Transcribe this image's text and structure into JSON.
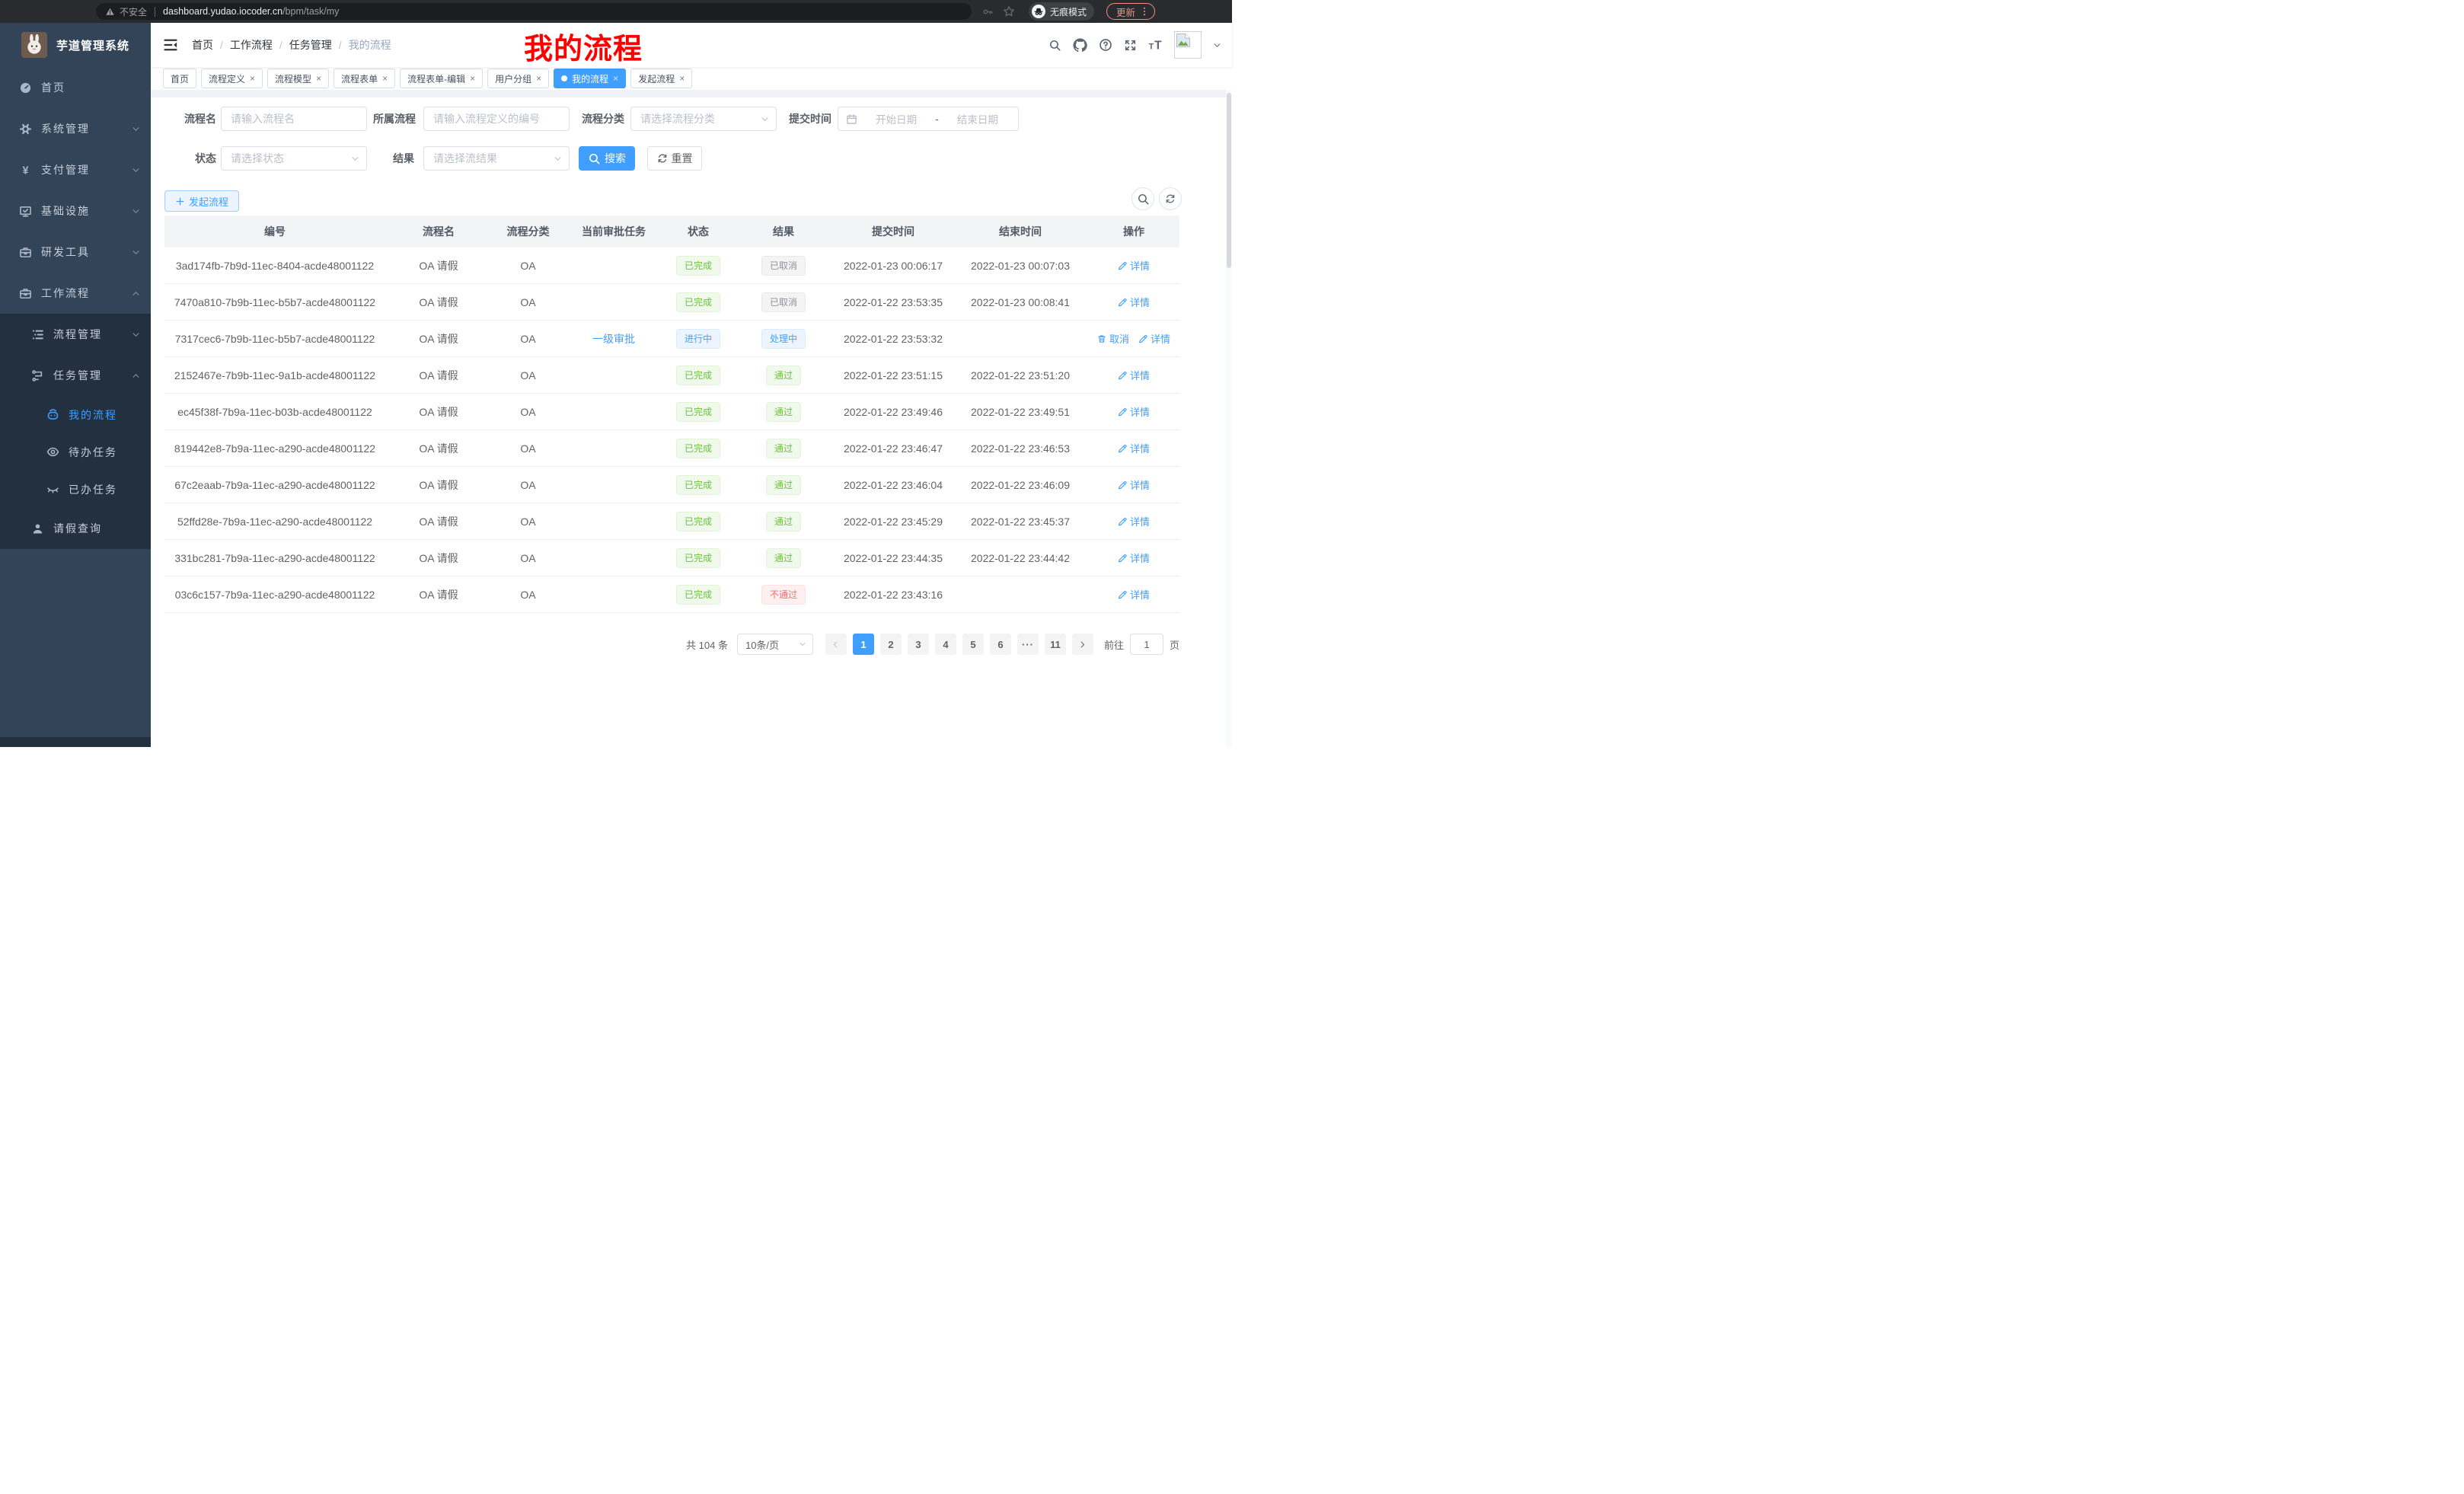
{
  "browser": {
    "security_label": "不安全",
    "url_host": "dashboard.yudao.iocoder.cn",
    "url_path": "/bpm/task/my",
    "incognito_label": "无痕模式",
    "update_label": "更新"
  },
  "sidebar": {
    "app_title": "芋道管理系统",
    "items": [
      {
        "label": "首页",
        "icon": "dashboard",
        "level": 1
      },
      {
        "label": "系统管理",
        "icon": "gear",
        "level": 1,
        "chevron": "down"
      },
      {
        "label": "支付管理",
        "icon": "yen",
        "level": 1,
        "chevron": "down"
      },
      {
        "label": "基础设施",
        "icon": "monitor",
        "level": 1,
        "chevron": "down"
      },
      {
        "label": "研发工具",
        "icon": "suitcase",
        "level": 1,
        "chevron": "down"
      },
      {
        "label": "工作流程",
        "icon": "suitcase",
        "level": 1,
        "chevron": "up"
      },
      {
        "label": "流程管理",
        "icon": "tree-list",
        "level": 2,
        "chevron": "down",
        "dark": true
      },
      {
        "label": "任务管理",
        "icon": "share-nodes",
        "level": 2,
        "chevron": "up",
        "dark": true
      },
      {
        "label": "我的流程",
        "icon": "robot",
        "level": 3,
        "dark": true,
        "active": true
      },
      {
        "label": "待办任务",
        "icon": "eye",
        "level": 3,
        "dark": true
      },
      {
        "label": "已办任务",
        "icon": "eye-closed",
        "level": 3,
        "dark": true
      },
      {
        "label": "请假查询",
        "icon": "user",
        "level": 2,
        "dark": true
      }
    ]
  },
  "header": {
    "breadcrumb": [
      "首页",
      "工作流程",
      "任务管理",
      "我的流程"
    ],
    "annotation": "我的流程"
  },
  "tabs": [
    {
      "label": "首页"
    },
    {
      "label": "流程定义",
      "closable": true
    },
    {
      "label": "流程模型",
      "closable": true
    },
    {
      "label": "流程表单",
      "closable": true
    },
    {
      "label": "流程表单-编辑",
      "closable": true
    },
    {
      "label": "用户分组",
      "closable": true
    },
    {
      "label": "我的流程",
      "closable": true,
      "active": true
    },
    {
      "label": "发起流程",
      "closable": true
    }
  ],
  "filters": {
    "process_name_label": "流程名",
    "process_name_placeholder": "请输入流程名",
    "parent_label": "所属流程",
    "parent_placeholder": "请输入流程定义的编号",
    "category_label": "流程分类",
    "category_placeholder": "请选择流程分类",
    "submit_time_label": "提交时间",
    "date_start_placeholder": "开始日期",
    "date_separator": "-",
    "date_end_placeholder": "结束日期",
    "status_label": "状态",
    "status_placeholder": "请选择状态",
    "result_label": "结果",
    "result_placeholder": "请选择流结果",
    "search_label": "搜索",
    "reset_label": "重置"
  },
  "toolbar": {
    "create_label": "发起流程"
  },
  "table": {
    "headers": [
      "编号",
      "流程名",
      "流程分类",
      "当前审批任务",
      "状态",
      "结果",
      "提交时间",
      "结束时间",
      "操作"
    ],
    "action_labels": {
      "detail": "详情",
      "cancel": "取消"
    },
    "rows": [
      {
        "id": "3ad174fb-7b9d-11ec-8404-acde48001122",
        "name": "OA 请假",
        "category": "OA",
        "task": "",
        "status": {
          "text": "已完成",
          "type": "success"
        },
        "result": {
          "text": "已取消",
          "type": "info"
        },
        "submit_time": "2022-01-23 00:06:17",
        "end_time": "2022-01-23 00:07:03",
        "actions": [
          "detail"
        ]
      },
      {
        "id": "7470a810-7b9b-11ec-b5b7-acde48001122",
        "name": "OA 请假",
        "category": "OA",
        "task": "",
        "status": {
          "text": "已完成",
          "type": "success"
        },
        "result": {
          "text": "已取消",
          "type": "info"
        },
        "submit_time": "2022-01-22 23:53:35",
        "end_time": "2022-01-23 00:08:41",
        "actions": [
          "detail"
        ]
      },
      {
        "id": "7317cec6-7b9b-11ec-b5b7-acde48001122",
        "name": "OA 请假",
        "category": "OA",
        "task": "一级审批",
        "status": {
          "text": "进行中",
          "type": "primary"
        },
        "result": {
          "text": "处理中",
          "type": "primary"
        },
        "submit_time": "2022-01-22 23:53:32",
        "end_time": "",
        "actions": [
          "cancel",
          "detail"
        ]
      },
      {
        "id": "2152467e-7b9b-11ec-9a1b-acde48001122",
        "name": "OA 请假",
        "category": "OA",
        "task": "",
        "status": {
          "text": "已完成",
          "type": "success"
        },
        "result": {
          "text": "通过",
          "type": "success"
        },
        "submit_time": "2022-01-22 23:51:15",
        "end_time": "2022-01-22 23:51:20",
        "actions": [
          "detail"
        ]
      },
      {
        "id": "ec45f38f-7b9a-11ec-b03b-acde48001122",
        "name": "OA 请假",
        "category": "OA",
        "task": "",
        "status": {
          "text": "已完成",
          "type": "success"
        },
        "result": {
          "text": "通过",
          "type": "success"
        },
        "submit_time": "2022-01-22 23:49:46",
        "end_time": "2022-01-22 23:49:51",
        "actions": [
          "detail"
        ]
      },
      {
        "id": "819442e8-7b9a-11ec-a290-acde48001122",
        "name": "OA 请假",
        "category": "OA",
        "task": "",
        "status": {
          "text": "已完成",
          "type": "success"
        },
        "result": {
          "text": "通过",
          "type": "success"
        },
        "submit_time": "2022-01-22 23:46:47",
        "end_time": "2022-01-22 23:46:53",
        "actions": [
          "detail"
        ]
      },
      {
        "id": "67c2eaab-7b9a-11ec-a290-acde48001122",
        "name": "OA 请假",
        "category": "OA",
        "task": "",
        "status": {
          "text": "已完成",
          "type": "success"
        },
        "result": {
          "text": "通过",
          "type": "success"
        },
        "submit_time": "2022-01-22 23:46:04",
        "end_time": "2022-01-22 23:46:09",
        "actions": [
          "detail"
        ]
      },
      {
        "id": "52ffd28e-7b9a-11ec-a290-acde48001122",
        "name": "OA 请假",
        "category": "OA",
        "task": "",
        "status": {
          "text": "已完成",
          "type": "success"
        },
        "result": {
          "text": "通过",
          "type": "success"
        },
        "submit_time": "2022-01-22 23:45:29",
        "end_time": "2022-01-22 23:45:37",
        "actions": [
          "detail"
        ]
      },
      {
        "id": "331bc281-7b9a-11ec-a290-acde48001122",
        "name": "OA 请假",
        "category": "OA",
        "task": "",
        "status": {
          "text": "已完成",
          "type": "success"
        },
        "result": {
          "text": "通过",
          "type": "success"
        },
        "submit_time": "2022-01-22 23:44:35",
        "end_time": "2022-01-22 23:44:42",
        "actions": [
          "detail"
        ]
      },
      {
        "id": "03c6c157-7b9a-11ec-a290-acde48001122",
        "name": "OA 请假",
        "category": "OA",
        "task": "",
        "status": {
          "text": "已完成",
          "type": "success"
        },
        "result": {
          "text": "不通过",
          "type": "danger"
        },
        "submit_time": "2022-01-22 23:43:16",
        "end_time": "",
        "actions": [
          "detail"
        ]
      }
    ]
  },
  "pagination": {
    "total_label": "共 104 条",
    "per_page_label": "10条/页",
    "pages": [
      "1",
      "2",
      "3",
      "4",
      "5",
      "6",
      "···",
      "11"
    ],
    "active_page": "1",
    "goto_label": "前往",
    "goto_value": "1",
    "goto_suffix": "页"
  },
  "colors": {
    "primary": "#409eff",
    "success": "#67c23a",
    "danger": "#f56c6c",
    "info": "#909399",
    "sidebar_bg": "#344458",
    "sidebar_sub_bg": "#233040",
    "annotation_red": "#fe0000"
  }
}
